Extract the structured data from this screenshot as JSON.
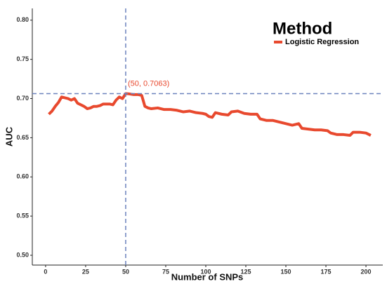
{
  "chart_data": {
    "type": "line",
    "x_label": "Number of SNPs",
    "y_label": "AUC",
    "legend_title": "Method",
    "annotation": "(50, 0.7063)",
    "reference_lines": {
      "x": 50,
      "y": 0.7063,
      "color": "#6b82bd"
    },
    "xlim": [
      -8.3,
      210.5
    ],
    "ylim": [
      0.4875,
      0.815
    ],
    "xticks": [
      0,
      25,
      50,
      75,
      100,
      125,
      150,
      175,
      200
    ],
    "yticks": [
      {
        "value": 0.5,
        "label": "0.50"
      },
      {
        "value": 0.55,
        "label": "0.55"
      },
      {
        "value": 0.6,
        "label": "0.60"
      },
      {
        "value": 0.65,
        "label": "0.65"
      },
      {
        "value": 0.7,
        "label": "0.70"
      },
      {
        "value": 0.75,
        "label": "0.75"
      },
      {
        "value": 0.8,
        "label": "0.80"
      }
    ],
    "x": [
      2,
      4,
      6,
      8,
      10,
      12,
      14,
      16,
      18,
      20,
      22,
      24,
      26,
      28,
      30,
      32,
      34,
      36,
      38,
      40,
      42,
      44,
      46,
      48,
      50,
      52,
      55,
      58,
      60,
      62,
      64,
      66,
      70,
      74,
      78,
      82,
      86,
      90,
      94,
      98,
      100,
      102,
      104,
      106,
      110,
      114,
      116,
      120,
      124,
      128,
      132,
      134,
      138,
      142,
      146,
      150,
      154,
      158,
      160,
      164,
      168,
      172,
      176,
      178,
      182,
      186,
      190,
      192,
      196,
      200,
      203
    ],
    "series": [
      {
        "name": "Logistic Regression",
        "color": "#e8492e",
        "values": [
          0.68,
          0.684,
          0.69,
          0.695,
          0.702,
          0.701,
          0.7,
          0.698,
          0.7,
          0.694,
          0.692,
          0.69,
          0.687,
          0.688,
          0.69,
          0.69,
          0.691,
          0.693,
          0.693,
          0.693,
          0.692,
          0.698,
          0.702,
          0.7,
          0.7063,
          0.706,
          0.705,
          0.705,
          0.704,
          0.69,
          0.688,
          0.687,
          0.688,
          0.686,
          0.686,
          0.685,
          0.683,
          0.684,
          0.682,
          0.681,
          0.68,
          0.677,
          0.676,
          0.682,
          0.68,
          0.679,
          0.683,
          0.684,
          0.681,
          0.68,
          0.68,
          0.674,
          0.672,
          0.672,
          0.67,
          0.668,
          0.666,
          0.668,
          0.662,
          0.661,
          0.66,
          0.66,
          0.659,
          0.656,
          0.654,
          0.654,
          0.653,
          0.657,
          0.657,
          0.656,
          0.653
        ]
      }
    ]
  }
}
